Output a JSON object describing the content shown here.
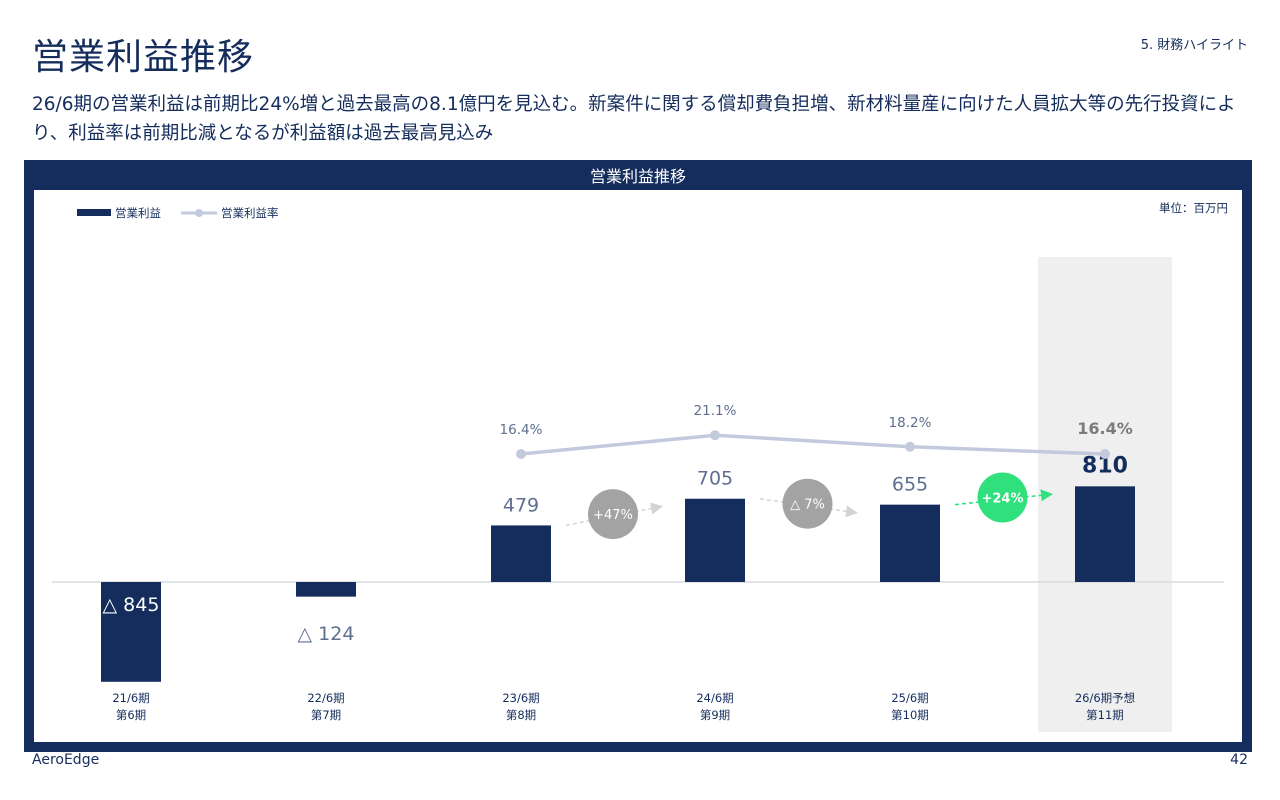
{
  "header": {
    "title": "営業利益推移",
    "section": "5. 財務ハイライト"
  },
  "summary": "26/6期の営業利益は前期比24%増と過去最高の8.1億円を見込む。新案件に関する償却費負担増、新材料量産に向けた人員拡大等の先行投資により、利益率は前期比減となるが利益額は過去最高見込み",
  "panel": {
    "title": "営業利益推移"
  },
  "footer": {
    "company": "AeroEdge",
    "page": "42"
  },
  "colors": {
    "bar": "#142d5c",
    "line": "#c3cade",
    "highlight": "#efefef",
    "growth_positive": "#2fe07c",
    "growth_neutral": "#a3a3a3"
  },
  "chart_data": {
    "type": "bar",
    "unit_label": "単位：百万円",
    "legend": [
      {
        "name": "営業利益",
        "kind": "bar"
      },
      {
        "name": "営業利益率",
        "kind": "line"
      }
    ],
    "categories": [
      [
        "21/6期",
        "第6期"
      ],
      [
        "22/6期",
        "第7期"
      ],
      [
        "23/6期",
        "第8期"
      ],
      [
        "24/6期",
        "第9期"
      ],
      [
        "25/6期",
        "第10期"
      ],
      [
        "26/6期予想",
        "第11期"
      ]
    ],
    "series": [
      {
        "name": "営業利益",
        "values": [
          -845,
          -124,
          479,
          705,
          655,
          810
        ],
        "labels": [
          "△ 845",
          "△ 124",
          "479",
          "705",
          "655",
          "810"
        ]
      },
      {
        "name": "営業利益率",
        "values": [
          null,
          null,
          16.4,
          21.1,
          18.2,
          16.4
        ],
        "labels": [
          "",
          "",
          "16.4%",
          "21.1%",
          "18.2%",
          "16.4%"
        ]
      }
    ],
    "growth": [
      {
        "from": 2,
        "to": 3,
        "label": "+47%",
        "positive": false
      },
      {
        "from": 3,
        "to": 4,
        "label": "△ 7%",
        "positive": false
      },
      {
        "from": 4,
        "to": 5,
        "label": "+24%",
        "positive": true
      }
    ],
    "highlight_index": 5
  }
}
